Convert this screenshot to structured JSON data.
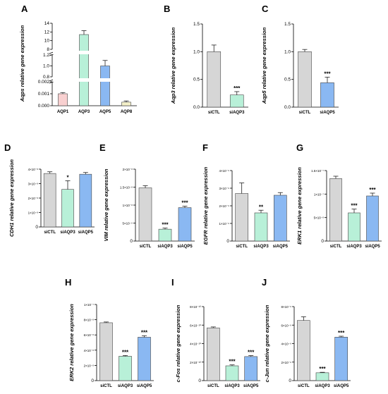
{
  "colors": {
    "siCTL": "#d6d6d6",
    "siAQP3": "#b8f0d8",
    "siAQP5": "#8ab8f2",
    "AQP1": "#f8d0d0",
    "AQP8": "#f4f0c8"
  },
  "chart_data": [
    {
      "id": "A",
      "panel_label": "A",
      "type": "bar",
      "ylabel": "Aqps relative gene expression",
      "ylabel_italic_part": "Aqps",
      "ylabel_rest": " relative gene expression",
      "categories": [
        "AQP1",
        "AQP3",
        "AQP5",
        "AQP8"
      ],
      "values": [
        0.001,
        11.4,
        1.0,
        0.0003
      ],
      "errors": [
        0.0001,
        0.9,
        0.1,
        0.0001
      ],
      "bar_colors": [
        "#f8d0d0",
        "#b8f0d8",
        "#8ab8f2",
        "#f4f0c8"
      ],
      "broken_axis": true,
      "segments": [
        {
          "ylim": [
            0,
            0.002
          ],
          "ticks": [
            "0.000",
            "0.001",
            "0.002"
          ],
          "tick_values": [
            0,
            0.001,
            0.002
          ]
        },
        {
          "ylim": [
            0.8,
            1.2
          ],
          "ticks": [
            "0.8",
            "1.0",
            "1.2"
          ],
          "tick_values": [
            0.8,
            1.0,
            1.2
          ]
        },
        {
          "ylim": [
            8,
            14
          ],
          "ticks": [
            "8",
            "10",
            "12",
            "14"
          ],
          "tick_values": [
            8,
            10,
            12,
            14
          ]
        }
      ],
      "significance": [
        "",
        "",
        "",
        ""
      ]
    },
    {
      "id": "B",
      "panel_label": "B",
      "type": "bar",
      "ylabel_italic_part": "Aqp3",
      "ylabel_rest": " relative gene expression",
      "categories": [
        "siCTL",
        "siAQP3"
      ],
      "values": [
        1.0,
        0.22
      ],
      "errors": [
        0.12,
        0.06
      ],
      "bar_colors": [
        "#d6d6d6",
        "#b8f0d8"
      ],
      "ylim": [
        0,
        1.5
      ],
      "ticks": [
        "0.0",
        "0.5",
        "1.0",
        "1.5"
      ],
      "tick_values": [
        0,
        0.5,
        1.0,
        1.5
      ],
      "significance": [
        "",
        "***"
      ]
    },
    {
      "id": "C",
      "panel_label": "C",
      "type": "bar",
      "ylabel_italic_part": "Aqp5",
      "ylabel_rest": " relative gene expression",
      "categories": [
        "siCTL",
        "siAQP5"
      ],
      "values": [
        1.0,
        0.44
      ],
      "errors": [
        0.04,
        0.1
      ],
      "bar_colors": [
        "#d6d6d6",
        "#8ab8f2"
      ],
      "ylim": [
        0,
        1.5
      ],
      "ticks": [
        "0.0",
        "0.5",
        "1.0",
        "1.5"
      ],
      "tick_values": [
        0,
        0.5,
        1.0,
        1.5
      ],
      "significance": [
        "",
        "***"
      ]
    },
    {
      "id": "D",
      "panel_label": "D",
      "type": "bar",
      "ylabel_italic_part": "CDH1",
      "ylabel_rest": " relative gene expression",
      "categories": [
        "siCTL",
        "siAQP3",
        "siAQP5"
      ],
      "values": [
        3.7e-08,
        2.6e-08,
        3.65e-08
      ],
      "errors": [
        1.2e-09,
        6e-09,
        1.2e-09
      ],
      "bar_colors": [
        "#d6d6d6",
        "#b8f0d8",
        "#8ab8f2"
      ],
      "ylim": [
        0,
        4e-08
      ],
      "ticks": [
        "0",
        "1×10⁻⁸",
        "2×10⁻⁸",
        "3×10⁻⁸",
        "4×10⁻⁸"
      ],
      "tick_values": [
        0,
        1e-08,
        2e-08,
        3e-08,
        4e-08
      ],
      "significance": [
        "",
        "*",
        ""
      ]
    },
    {
      "id": "E",
      "panel_label": "E",
      "type": "bar",
      "ylabel_italic_part": "VIM",
      "ylabel_rest": " relative gene expression",
      "categories": [
        "siCTL",
        "siAQP3",
        "siAQP5"
      ],
      "values": [
        1.48e-08,
        3.3e-09,
        9.3e-09
      ],
      "errors": [
        6e-10,
        3e-10,
        4e-10
      ],
      "bar_colors": [
        "#d6d6d6",
        "#b8f0d8",
        "#8ab8f2"
      ],
      "ylim": [
        0,
        2e-08
      ],
      "ticks": [
        "0",
        "5×10⁻⁹",
        "1×10⁻⁸",
        "1.5×10⁻⁸",
        "2×10⁻⁸"
      ],
      "tick_values": [
        0,
        5e-09,
        1e-08,
        1.5e-08,
        2e-08
      ],
      "significance": [
        "",
        "***",
        "***"
      ]
    },
    {
      "id": "F",
      "panel_label": "F",
      "type": "bar",
      "ylabel_italic_part": "EGFR",
      "ylabel_rest": " relative gene expression",
      "categories": [
        "siCTL",
        "siAQP3",
        "siAQP5"
      ],
      "values": [
        2.7e-09,
        1.6e-09,
        2.6e-09
      ],
      "errors": [
        6e-10,
        1.5e-10,
        1.5e-10
      ],
      "bar_colors": [
        "#d6d6d6",
        "#b8f0d8",
        "#8ab8f2"
      ],
      "ylim": [
        0,
        4e-09
      ],
      "ticks": [
        "0",
        "1×10⁻⁹",
        "2×10⁻⁹",
        "3×10⁻⁹",
        "4×10⁻⁹"
      ],
      "tick_values": [
        0,
        1e-09,
        2e-09,
        3e-09,
        4e-09
      ],
      "significance": [
        "",
        "**",
        ""
      ]
    },
    {
      "id": "G",
      "panel_label": "G",
      "type": "bar",
      "ylabel_italic_part": "ERK1",
      "ylabel_rest": " relative gene expression",
      "categories": [
        "siCTL",
        "siAQP3",
        "siAQP5"
      ],
      "values": [
        1.33e-07,
        6e-08,
        9.6e-08
      ],
      "errors": [
        5e-09,
        8e-09,
        6e-09
      ],
      "bar_colors": [
        "#d6d6d6",
        "#b8f0d8",
        "#8ab8f2"
      ],
      "ylim": [
        0,
        1.5e-07
      ],
      "ticks": [
        "0",
        "5×10⁻⁸",
        "1×10⁻⁷",
        "1.5×10⁻⁷"
      ],
      "tick_values": [
        0,
        5e-08,
        1e-07,
        1.5e-07
      ],
      "significance": [
        "",
        "***",
        "***"
      ]
    },
    {
      "id": "H",
      "panel_label": "H",
      "type": "bar",
      "ylabel_italic_part": "ERK2",
      "ylabel_rest": " relative gene expression",
      "categories": [
        "siCTL",
        "siAQP3",
        "siAQP5"
      ],
      "values": [
        7.6e-08,
        3.2e-08,
        5.7e-08
      ],
      "errors": [
        1e-09,
        1e-09,
        2e-09
      ],
      "bar_colors": [
        "#d6d6d6",
        "#b8f0d8",
        "#8ab8f2"
      ],
      "ylim": [
        0,
        1e-07
      ],
      "ticks": [
        "0",
        "2×10⁻⁸",
        "4×10⁻⁸",
        "6×10⁻⁸",
        "8×10⁻⁸",
        "1×10⁻⁷"
      ],
      "tick_values": [
        0,
        2e-08,
        4e-08,
        6e-08,
        8e-08,
        1e-07
      ],
      "significance": [
        "",
        "***",
        "***"
      ]
    },
    {
      "id": "I",
      "panel_label": "I",
      "type": "bar",
      "ylabel_italic_part": "c-Fos",
      "ylabel_rest": " relative gene expression",
      "categories": [
        "siCTL",
        "siAQP3",
        "siAQP5"
      ],
      "values": [
        5.7e-10,
        1.6e-10,
        2.6e-10
      ],
      "errors": [
        1e-11,
        1e-11,
        1e-11
      ],
      "bar_colors": [
        "#d6d6d6",
        "#b8f0d8",
        "#8ab8f2"
      ],
      "ylim": [
        0,
        8e-10
      ],
      "ticks": [
        "0",
        "2×10⁻¹⁰",
        "4×10⁻¹⁰",
        "6×10⁻¹⁰",
        "8×10⁻¹⁰"
      ],
      "tick_values": [
        0,
        2e-10,
        4e-10,
        6e-10,
        8e-10
      ],
      "significance": [
        "",
        "***",
        "***"
      ]
    },
    {
      "id": "J",
      "panel_label": "J",
      "type": "bar",
      "ylabel_italic_part": "c-Jun",
      "ylabel_rest": " relative gene expression",
      "categories": [
        "siCTL",
        "siAQP3",
        "siAQP5"
      ],
      "values": [
        6.5e-09,
        8.5e-10,
        4.7e-09
      ],
      "errors": [
        4e-10,
        5e-11,
        1e-10
      ],
      "bar_colors": [
        "#d6d6d6",
        "#b8f0d8",
        "#8ab8f2"
      ],
      "ylim": [
        0,
        8e-09
      ],
      "ticks": [
        "0",
        "2×10⁻⁹",
        "4×10⁻⁹",
        "6×10⁻⁹",
        "8×10⁻⁹"
      ],
      "tick_values": [
        0,
        2e-09,
        4e-09,
        6e-09,
        8e-09
      ],
      "significance": [
        "",
        "***",
        "***"
      ]
    }
  ]
}
